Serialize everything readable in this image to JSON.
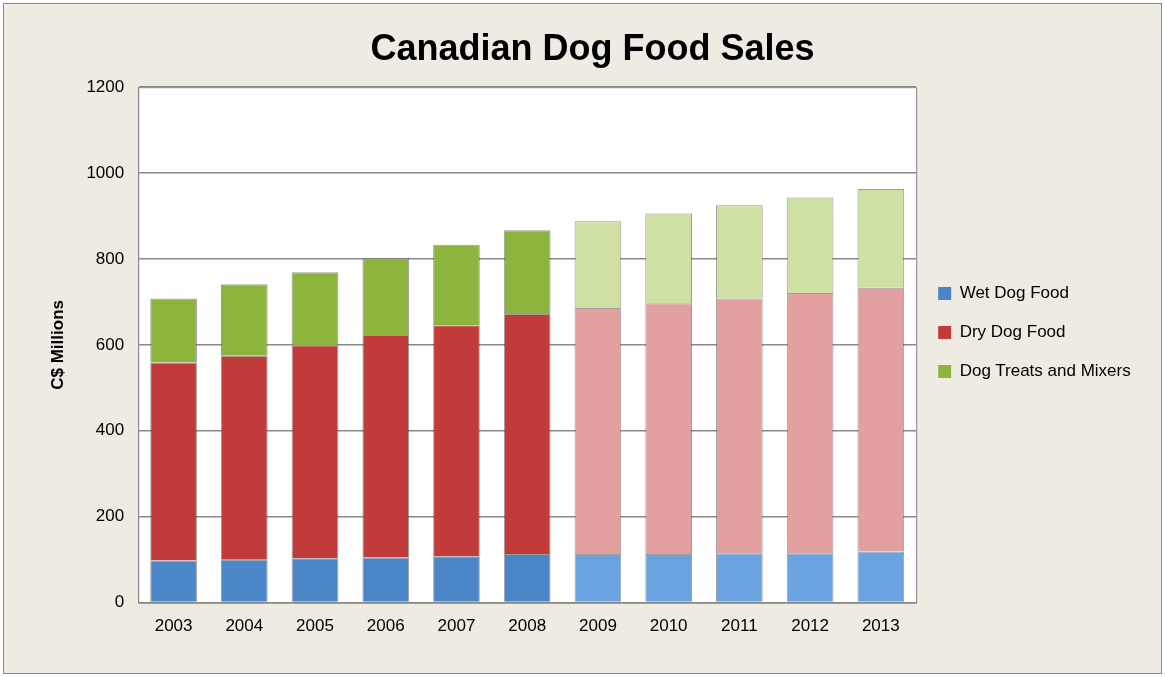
{
  "chart_data": {
    "type": "bar",
    "title": "Canadian Dog Food Sales",
    "ylabel": "C$ Millions",
    "stacked": true,
    "grid": "y",
    "legend": "right",
    "categories": [
      "2003",
      "2004",
      "2005",
      "2006",
      "2007",
      "2008",
      "2009",
      "2010",
      "2011",
      "2012",
      "2013"
    ],
    "ylim": [
      0,
      1200
    ],
    "yticks": [
      0,
      200,
      400,
      600,
      800,
      1000,
      1200
    ],
    "series": [
      {
        "name": "Wet Dog Food",
        "color": "#4a86c8",
        "colors": [
          "#4a86c8",
          "#4a86c8",
          "#4a86c8",
          "#4a86c8",
          "#4a86c8",
          "#4a86c8",
          "#6aa3e0",
          "#6aa3e0",
          "#6aa3e0",
          "#6aa3e0",
          "#6aa3e0"
        ],
        "values": [
          98,
          100,
          103,
          105,
          108,
          113,
          113,
          113,
          115,
          115,
          119
        ]
      },
      {
        "name": "Dry Dog Food",
        "color": "#c23b3b",
        "colors": [
          "#c23b3b",
          "#c23b3b",
          "#c23b3b",
          "#c23b3b",
          "#c23b3b",
          "#c23b3b",
          "#e3a0a0",
          "#e3a0a0",
          "#e3a0a0",
          "#e3a0a0",
          "#e3a0a0"
        ],
        "values": [
          461,
          475,
          496,
          518,
          538,
          559,
          573,
          584,
          593,
          606,
          614
        ]
      },
      {
        "name": "Dog Treats and Mixers",
        "color": "#8db43c",
        "colors": [
          "#8db43c",
          "#8db43c",
          "#8db43c",
          "#8db43c",
          "#8db43c",
          "#8db43c",
          "#cfe0a3",
          "#cfe0a3",
          "#cfe0a3",
          "#cfe0a3",
          "#cfe0a3"
        ],
        "values": [
          149,
          166,
          170,
          178,
          187,
          195,
          202,
          209,
          217,
          222,
          230
        ]
      }
    ]
  }
}
